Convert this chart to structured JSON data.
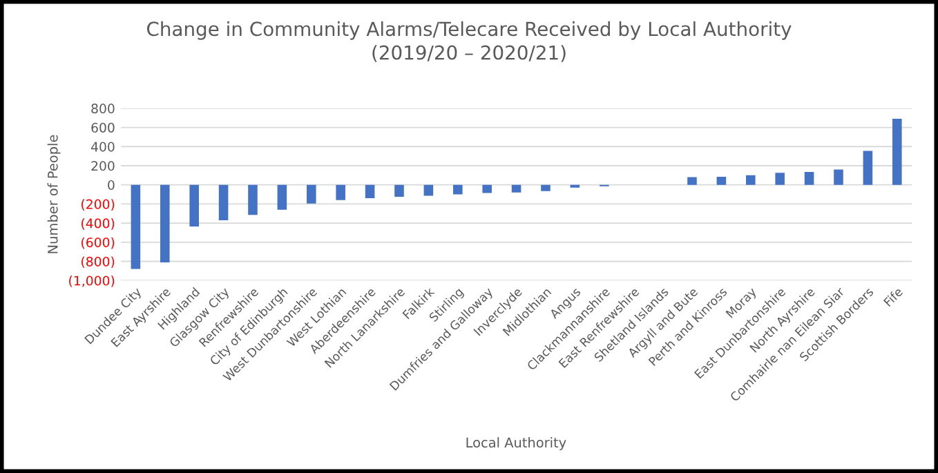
{
  "chart_data": {
    "type": "bar",
    "title": "Change in Community Alarms/Telecare Received by Local Authority\n(2019/20 – 2020/21)",
    "xlabel": "Local Authority",
    "ylabel": "Number of People",
    "categories": [
      "Dundee City",
      "East Ayrshire",
      "Highland",
      "Glasgow City",
      "Renfrewshire",
      "City of Edinburgh",
      "West Dunbartonshire",
      "West Lothian",
      "Aberdeenshire",
      "North Lanarkshire",
      "Falkirk",
      "Stirling",
      "Dumfries and Galloway",
      "Inverclyde",
      "Midlothian",
      "Angus",
      "Clackmannanshire",
      "East Renfrewshire",
      "Shetland Islands",
      "Argyll and Bute",
      "Perth and Kinross",
      "Moray",
      "East Dunbartonshire",
      "North Ayrshire",
      "Comhairle nan Eilean Siar",
      "Scottish Borders",
      "Fife"
    ],
    "values": [
      -880,
      -810,
      -435,
      -370,
      -315,
      -260,
      -195,
      -160,
      -140,
      -125,
      -115,
      -100,
      -85,
      -80,
      -65,
      -30,
      -15,
      0,
      0,
      80,
      85,
      100,
      125,
      135,
      160,
      355,
      690
    ],
    "color": "#4472c4",
    "ylim": [
      -1000,
      800
    ],
    "yticks": [
      800,
      600,
      400,
      200,
      0,
      {
        "value": -200,
        "label": "(200)"
      },
      {
        "value": -400,
        "label": "(400)"
      },
      {
        "value": -600,
        "label": "(600)"
      },
      {
        "value": -800,
        "label": "(800)"
      },
      {
        "value": -1000,
        "label": "(1,000)"
      }
    ],
    "grid": "y"
  }
}
